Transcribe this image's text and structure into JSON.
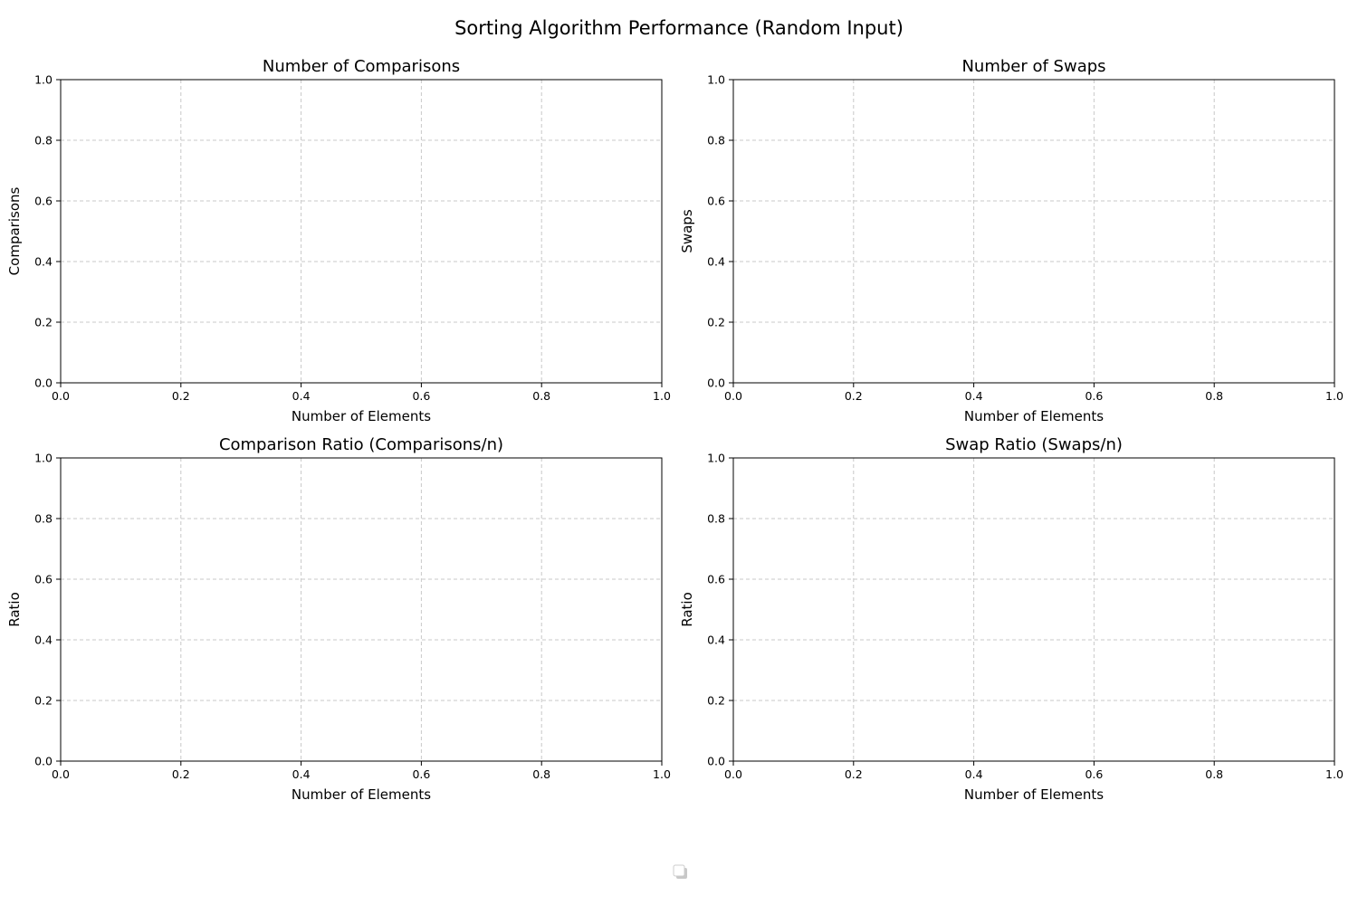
{
  "figure": {
    "title": "Sorting Algorithm Performance (Random Input)"
  },
  "chart_data": [
    {
      "type": "line",
      "title": "Number of Comparisons",
      "xlabel": "Number of Elements",
      "ylabel": "Comparisons",
      "xlim": [
        0,
        1
      ],
      "ylim": [
        0,
        1
      ],
      "xticks": [
        "0.0",
        "0.2",
        "0.4",
        "0.6",
        "0.8",
        "1.0"
      ],
      "yticks": [
        "0.0",
        "0.2",
        "0.4",
        "0.6",
        "0.8",
        "1.0"
      ],
      "grid": true,
      "series": []
    },
    {
      "type": "line",
      "title": "Number of Swaps",
      "xlabel": "Number of Elements",
      "ylabel": "Swaps",
      "xlim": [
        0,
        1
      ],
      "ylim": [
        0,
        1
      ],
      "xticks": [
        "0.0",
        "0.2",
        "0.4",
        "0.6",
        "0.8",
        "1.0"
      ],
      "yticks": [
        "0.0",
        "0.2",
        "0.4",
        "0.6",
        "0.8",
        "1.0"
      ],
      "grid": true,
      "series": []
    },
    {
      "type": "line",
      "title": "Comparison Ratio (Comparisons/n)",
      "xlabel": "Number of Elements",
      "ylabel": "Ratio",
      "xlim": [
        0,
        1
      ],
      "ylim": [
        0,
        1
      ],
      "xticks": [
        "0.0",
        "0.2",
        "0.4",
        "0.6",
        "0.8",
        "1.0"
      ],
      "yticks": [
        "0.0",
        "0.2",
        "0.4",
        "0.6",
        "0.8",
        "1.0"
      ],
      "grid": true,
      "series": []
    },
    {
      "type": "line",
      "title": "Swap Ratio (Swaps/n)",
      "xlabel": "Number of Elements",
      "ylabel": "Ratio",
      "xlim": [
        0,
        1
      ],
      "ylim": [
        0,
        1
      ],
      "xticks": [
        "0.0",
        "0.2",
        "0.4",
        "0.6",
        "0.8",
        "1.0"
      ],
      "yticks": [
        "0.0",
        "0.2",
        "0.4",
        "0.6",
        "0.8",
        "1.0"
      ],
      "grid": true,
      "series": []
    }
  ],
  "legend": {
    "placement": "bottom-center",
    "entries": []
  }
}
